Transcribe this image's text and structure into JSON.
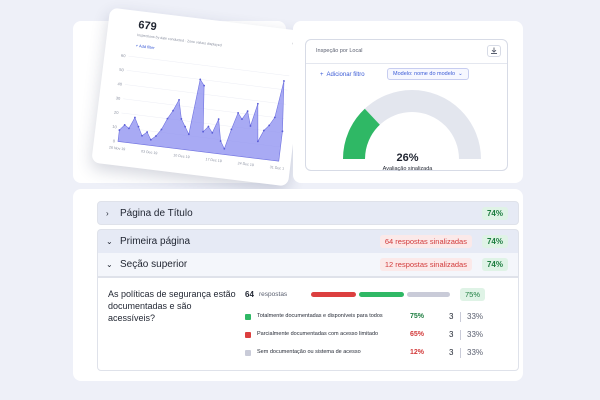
{
  "chart_card": {
    "total": "679",
    "subtitle": "Inspections by date conducted  ·  Zone values displayed",
    "add_filter": "+ Add filter",
    "chart_data": {
      "type": "area",
      "x": [
        0,
        1,
        2,
        3,
        4,
        5,
        6,
        7,
        8,
        9,
        10,
        11,
        12,
        13,
        14,
        15,
        16,
        17,
        18,
        19,
        20,
        21,
        22,
        23,
        24,
        25,
        26,
        27,
        28,
        29,
        30,
        31,
        32,
        33,
        34,
        35
      ],
      "values": [
        8,
        12,
        10,
        18,
        12,
        6,
        9,
        4,
        7,
        12,
        20,
        26,
        34,
        21,
        16,
        11,
        50,
        46,
        14,
        18,
        14,
        24,
        9,
        4,
        18,
        30,
        26,
        32,
        22,
        38,
        12,
        20,
        24,
        30,
        56,
        21
      ],
      "yticks": [
        "60",
        "50",
        "40",
        "30",
        "20",
        "10",
        "0"
      ],
      "xticks": [
        "26 Nov 19",
        "03 Dec 19",
        "10 Dec 19",
        "17 Dec 19",
        "24 Dec 19",
        "31 Dec 19"
      ],
      "ylim": [
        0,
        60
      ],
      "color": "#8b8ef0"
    }
  },
  "gauge_card": {
    "title": "Inspeção por Local",
    "add_filter": "Adicionar filtro",
    "model_select": "Modelo: nome do modelo",
    "percent": "26%",
    "label": "Avaliação sinalizada",
    "fraction": 0.26,
    "colors": {
      "fill": "#2fb865",
      "track": "#e3e6ee"
    }
  },
  "report": {
    "rows": [
      {
        "title": "Página de Título",
        "flag": "",
        "pct": "74%"
      },
      {
        "title": "Primeira página",
        "flag": "64 respostas sinalizadas",
        "pct": "74%"
      },
      {
        "title": "Seção superior",
        "flag": "12 respostas sinalizadas",
        "pct": "74%"
      }
    ],
    "question": "As políticas de segurança estão documentadas e são acessíveis?",
    "responses_count": "64",
    "responses_label": "respostas",
    "summary_pct": "75%",
    "options": [
      {
        "label": "Totalmente documentadas e disponíveis para todos",
        "pct": "75%",
        "count": "3",
        "share": "33%",
        "color": "#2fb865",
        "pct_color": "#1c7d3f"
      },
      {
        "label": "Parcialmente documentadas com acesso limitado",
        "pct": "65%",
        "count": "3",
        "share": "33%",
        "color": "#dc3f3f",
        "pct_color": "#d23a3a"
      },
      {
        "label": "Sem documentação ou sistema de acesso",
        "pct": "12%",
        "count": "3",
        "share": "33%",
        "color": "#c9cbd8",
        "pct_color": "#d23a3a"
      }
    ]
  }
}
